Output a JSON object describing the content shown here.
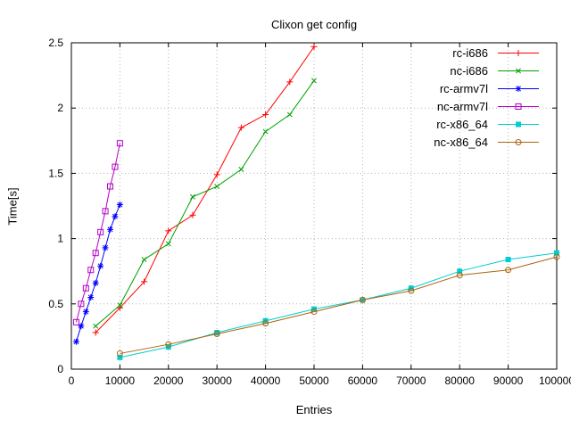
{
  "title": "Clixon get config",
  "chart_data": {
    "type": "line",
    "title": "Clixon get config",
    "xlabel": "Entries",
    "ylabel": "Time[s]",
    "xlim": [
      0,
      100000
    ],
    "ylim": [
      0,
      2.5
    ],
    "xticks": [
      0,
      10000,
      20000,
      30000,
      40000,
      50000,
      60000,
      70000,
      80000,
      90000,
      100000
    ],
    "yticks": [
      0,
      0.5,
      1,
      1.5,
      2,
      2.5
    ],
    "grid": true,
    "grid_style": "dotted",
    "legend_position": "top-right",
    "series": [
      {
        "name": "rc-i686",
        "color": "#ff0000",
        "marker": "plus",
        "x": [
          5000,
          10000,
          15000,
          20000,
          25000,
          30000,
          35000,
          40000,
          45000,
          50000
        ],
        "y": [
          0.28,
          0.47,
          0.67,
          1.06,
          1.18,
          1.49,
          1.85,
          1.95,
          2.2,
          2.47
        ]
      },
      {
        "name": "nc-i686",
        "color": "#00a000",
        "marker": "cross",
        "x": [
          5000,
          10000,
          15000,
          20000,
          25000,
          30000,
          35000,
          40000,
          45000,
          50000
        ],
        "y": [
          0.33,
          0.49,
          0.84,
          0.96,
          1.32,
          1.4,
          1.53,
          1.82,
          1.95,
          2.21
        ]
      },
      {
        "name": "rc-armv7l",
        "color": "#0000ff",
        "marker": "asterisk",
        "x": [
          1000,
          2000,
          3000,
          4000,
          5000,
          6000,
          7000,
          8000,
          9000,
          10000
        ],
        "y": [
          0.21,
          0.33,
          0.44,
          0.55,
          0.66,
          0.79,
          0.93,
          1.07,
          1.17,
          1.26
        ]
      },
      {
        "name": "nc-armv7l",
        "color": "#b400c8",
        "marker": "square-open",
        "x": [
          1000,
          2000,
          3000,
          4000,
          5000,
          6000,
          7000,
          8000,
          9000,
          10000
        ],
        "y": [
          0.36,
          0.5,
          0.62,
          0.76,
          0.89,
          1.05,
          1.21,
          1.4,
          1.55,
          1.73
        ]
      },
      {
        "name": "rc-x86_64",
        "color": "#00cdcd",
        "marker": "square-filled",
        "x": [
          10000,
          20000,
          30000,
          40000,
          50000,
          60000,
          70000,
          80000,
          90000,
          100000
        ],
        "y": [
          0.09,
          0.17,
          0.28,
          0.37,
          0.46,
          0.53,
          0.62,
          0.75,
          0.84,
          0.89
        ]
      },
      {
        "name": "nc-x86_64",
        "color": "#aa6611",
        "marker": "circle-open",
        "x": [
          10000,
          20000,
          30000,
          40000,
          50000,
          60000,
          70000,
          80000,
          90000,
          100000
        ],
        "y": [
          0.12,
          0.19,
          0.27,
          0.35,
          0.44,
          0.53,
          0.6,
          0.72,
          0.76,
          0.86
        ]
      }
    ]
  }
}
